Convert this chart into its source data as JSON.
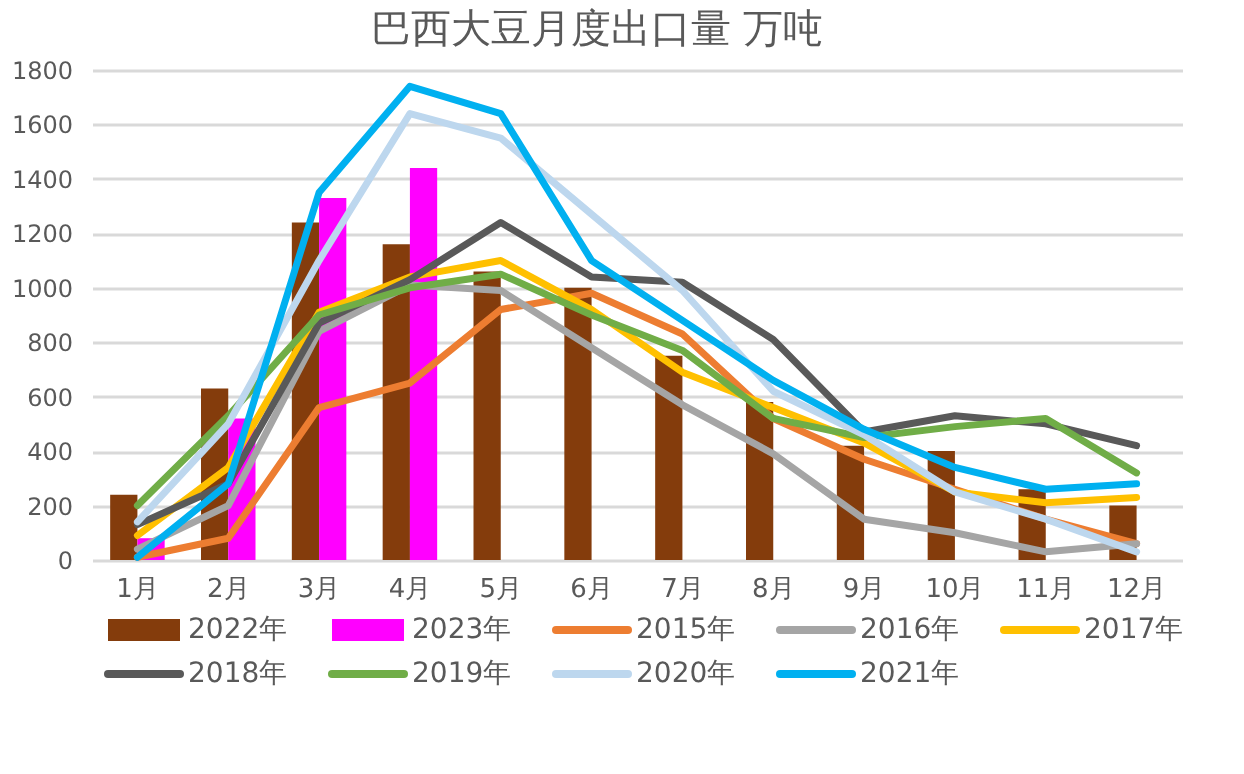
{
  "chart_data": {
    "type": "bar",
    "title": "巴西大豆月度出口量    万吨",
    "categories": [
      "1月",
      "2月",
      "3月",
      "4月",
      "5月",
      "6月",
      "7月",
      "8月",
      "9月",
      "10月",
      "11月",
      "12月"
    ],
    "series": [
      {
        "name": "2022年",
        "color": "#843c0c",
        "values": [
          240,
          630,
          1240,
          1160,
          1060,
          1000,
          750,
          580,
          420,
          400,
          260,
          200
        ]
      },
      {
        "name": "2023年",
        "color": "#ff00ff",
        "values": [
          80,
          520,
          1330,
          1440,
          null,
          null,
          null,
          null,
          null,
          null,
          null,
          null
        ]
      },
      {
        "name": "2015年",
        "type": "line",
        "color": "#ed7d31",
        "values": [
          10,
          80,
          560,
          650,
          920,
          980,
          830,
          520,
          370,
          260,
          150,
          60
        ]
      },
      {
        "name": "2016年",
        "type": "line",
        "color": "#a5a5a5",
        "values": [
          40,
          200,
          840,
          1010,
          990,
          780,
          570,
          390,
          150,
          100,
          30,
          60
        ]
      },
      {
        "name": "2017年",
        "type": "line",
        "color": "#ffc000",
        "values": [
          90,
          340,
          910,
          1040,
          1100,
          920,
          690,
          560,
          430,
          250,
          210,
          230
        ]
      },
      {
        "name": "2018年",
        "type": "line",
        "color": "#595959",
        "values": [
          130,
          280,
          870,
          1030,
          1240,
          1040,
          1020,
          810,
          470,
          530,
          500,
          420
        ]
      },
      {
        "name": "2019年",
        "type": "line",
        "color": "#70ad47",
        "values": [
          200,
          530,
          900,
          1000,
          1050,
          900,
          770,
          520,
          450,
          490,
          520,
          320
        ]
      },
      {
        "name": "2020年",
        "type": "line",
        "color": "#bdd7ee",
        "values": [
          140,
          500,
          1100,
          1640,
          1550,
          1270,
          990,
          620,
          460,
          250,
          150,
          30
        ]
      },
      {
        "name": "2021年",
        "type": "line",
        "color": "#00b0f0",
        "values": [
          10,
          280,
          1350,
          1740,
          1640,
          1100,
          880,
          660,
          480,
          340,
          260,
          280
        ]
      }
    ],
    "ylim": [
      0,
      1800
    ],
    "yticks": [
      0,
      200,
      400,
      600,
      800,
      1000,
      1200,
      1400,
      1600,
      1800
    ],
    "grid": "y",
    "legend": "bottom"
  }
}
